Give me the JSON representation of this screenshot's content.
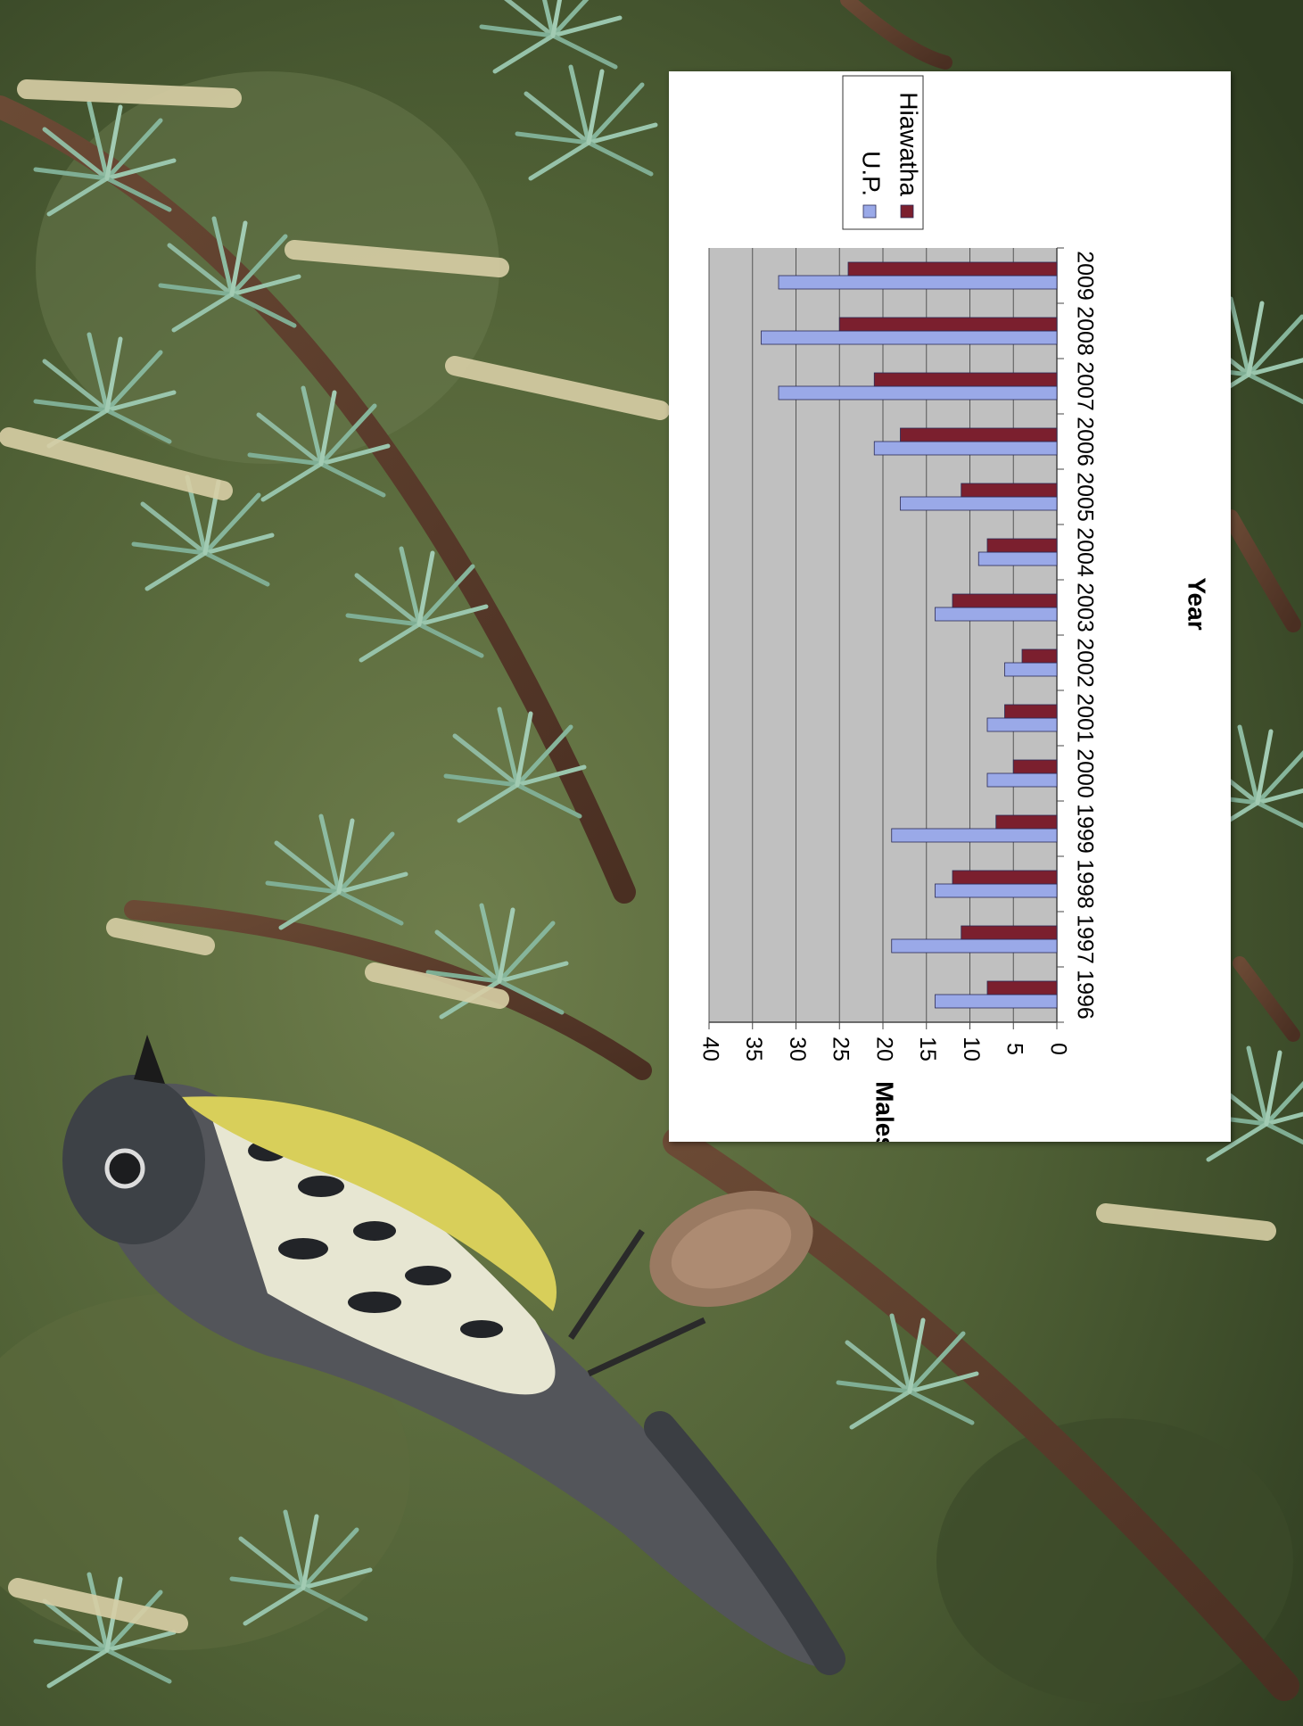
{
  "chart_data": {
    "type": "bar",
    "orientation": "vertical, figure printed rotated 90 degrees clockwise",
    "categories": [
      "1996",
      "1997",
      "1998",
      "1999",
      "2000",
      "2001",
      "2002",
      "2003",
      "2004",
      "2005",
      "2006",
      "2007",
      "2008",
      "2009"
    ],
    "series": [
      {
        "name": "U.P.",
        "color": "#9aa9e8",
        "values": [
          14,
          19,
          14,
          19,
          8,
          8,
          6,
          14,
          9,
          18,
          21,
          32,
          34,
          32
        ]
      },
      {
        "name": "Hiawatha",
        "color": "#7b1f2e",
        "values": [
          8,
          11,
          12,
          7,
          5,
          6,
          4,
          12,
          8,
          11,
          18,
          21,
          25,
          24
        ]
      }
    ],
    "title": "",
    "xlabel": "Year",
    "ylabel": "Males",
    "ylim": [
      0,
      40
    ],
    "yticks": [
      "0",
      "5",
      "10",
      "15",
      "20",
      "25",
      "30",
      "35",
      "40"
    ],
    "grid": true,
    "plot_background": "#c0c0c0",
    "legend_position": "top-right"
  },
  "background": {
    "image_type": "photograph",
    "subject": "yellow-breasted warbler perched on a pine branch"
  }
}
